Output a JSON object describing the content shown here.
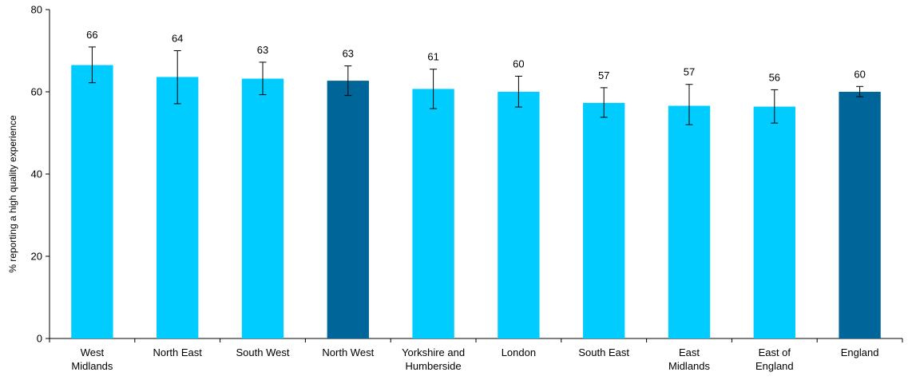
{
  "chart_data": {
    "type": "bar",
    "title": "",
    "xlabel": "",
    "ylabel": "% reporting a high quality experience",
    "ylim": [
      0,
      80
    ],
    "yticks": [
      0,
      20,
      40,
      60,
      80
    ],
    "grid": false,
    "legend": "none",
    "categories": [
      "West Midlands",
      "North East",
      "South West",
      "North West",
      "Yorkshire and Humberside",
      "London",
      "South East",
      "East Midlands",
      "East of England",
      "England"
    ],
    "category_lines": [
      [
        "West",
        "Midlands"
      ],
      [
        "North East"
      ],
      [
        "South West"
      ],
      [
        "North West"
      ],
      [
        "Yorkshire and",
        "Humberside"
      ],
      [
        "London"
      ],
      [
        "South East"
      ],
      [
        "East",
        "Midlands"
      ],
      [
        "East of",
        "England"
      ],
      [
        "England"
      ]
    ],
    "values": [
      66.5,
      63.6,
      63.2,
      62.7,
      60.7,
      60.0,
      57.3,
      56.6,
      56.4,
      60.0
    ],
    "data_labels": [
      "66",
      "64",
      "63",
      "63",
      "61",
      "60",
      "57",
      "57",
      "56",
      "60"
    ],
    "error_low": [
      62.2,
      57.1,
      59.3,
      59.1,
      55.9,
      56.3,
      53.8,
      52.0,
      52.4,
      58.8
    ],
    "error_high": [
      70.9,
      70.0,
      67.2,
      66.3,
      65.5,
      63.8,
      61.0,
      61.8,
      60.5,
      61.3
    ],
    "highlighted": [
      false,
      false,
      false,
      true,
      false,
      false,
      false,
      false,
      false,
      true
    ],
    "colors": {
      "bar": "#00CCFF",
      "bar_highlight": "#006699",
      "axis": "#000000",
      "error_bar": "#000000"
    }
  }
}
